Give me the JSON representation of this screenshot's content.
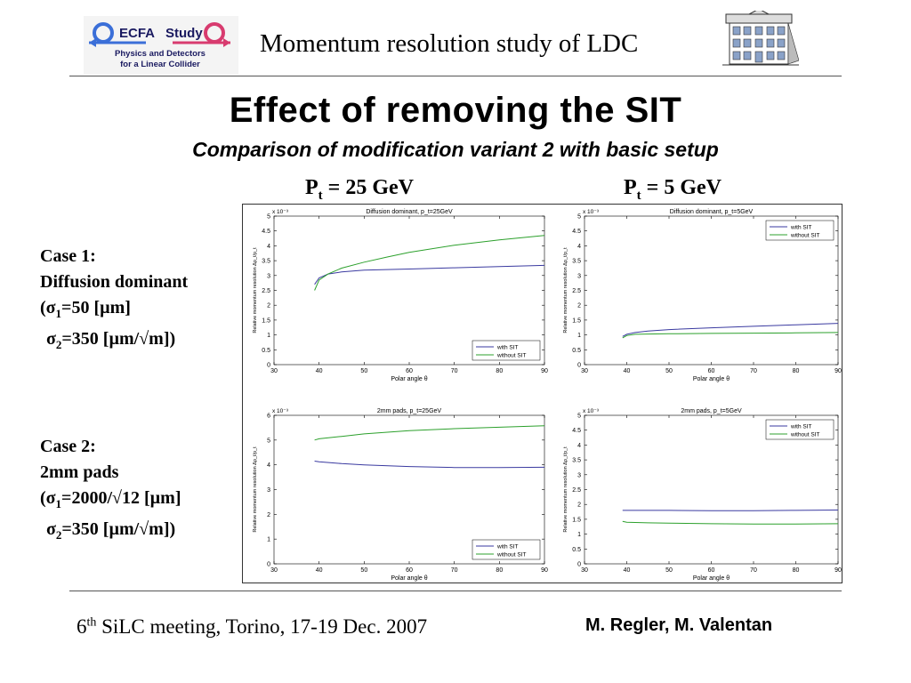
{
  "header": {
    "logo_left": {
      "name": "ECFA",
      "name2": "Study",
      "line1": "Physics and Detectors",
      "line2": "for a Linear Collider"
    },
    "title": "Momentum resolution study of LDC"
  },
  "main_title": "Effect of removing the SIT",
  "subtitle": "Comparison of modification variant 2 with basic setup",
  "columns": [
    {
      "p": "P",
      "sub": "t",
      "rest": " = 25 GeV"
    },
    {
      "p": "P",
      "sub": "t",
      "rest": " = 5 GeV"
    }
  ],
  "cases": [
    {
      "line1": "Case 1:",
      "line2": "Diffusion dominant",
      "line3_a": "(σ",
      "line3_sub": "1",
      "line3_b": "=50 [µm]",
      "line4_a": "σ",
      "line4_sub": "2",
      "line4_b": "=350 [µm/√m])"
    },
    {
      "line1": "Case 2:",
      "line2": "2mm pads",
      "line3_a": "(σ",
      "line3_sub": "1",
      "line3_b": "=2000/√12 [µm]",
      "line4_a": "σ",
      "line4_sub": "2",
      "line4_b": "=350 [µm/√m])"
    }
  ],
  "chart_data": [
    {
      "type": "line",
      "title": "Diffusion dominant, p_t=25GeV",
      "xlabel": "Polar angle θ",
      "ylabel": "Relative momentum resolution Δp_t/p_t",
      "yexp": "x 10⁻³",
      "xlim": [
        30,
        90
      ],
      "ylim": [
        0,
        5
      ],
      "xticks": [
        30,
        40,
        50,
        60,
        70,
        80,
        90
      ],
      "yticks": [
        0,
        0.5,
        1,
        1.5,
        2,
        2.5,
        3,
        3.5,
        4,
        4.5,
        5
      ],
      "legend_pos": "bottom-right",
      "series": [
        {
          "name": "with SIT",
          "color": "#3a3aa0",
          "x": [
            39,
            40,
            42,
            45,
            50,
            60,
            70,
            80,
            90
          ],
          "y": [
            2.7,
            2.92,
            3.05,
            3.12,
            3.18,
            3.22,
            3.26,
            3.3,
            3.34
          ]
        },
        {
          "name": "without SIT",
          "color": "#2ca02c",
          "x": [
            39,
            40,
            42,
            45,
            50,
            55,
            60,
            70,
            80,
            90
          ],
          "y": [
            2.5,
            2.85,
            3.05,
            3.25,
            3.45,
            3.62,
            3.78,
            4.02,
            4.2,
            4.35
          ]
        }
      ]
    },
    {
      "type": "line",
      "title": "Diffusion dominant, p_t=5GeV",
      "xlabel": "Polar angle θ",
      "ylabel": "Relative momentum resolution Δp_t/p_t",
      "yexp": "x 10⁻³",
      "xlim": [
        30,
        90
      ],
      "ylim": [
        0,
        5
      ],
      "xticks": [
        30,
        40,
        50,
        60,
        70,
        80,
        90
      ],
      "yticks": [
        0,
        0.5,
        1,
        1.5,
        2,
        2.5,
        3,
        3.5,
        4,
        4.5,
        5
      ],
      "legend_pos": "top-right",
      "series": [
        {
          "name": "with SIT",
          "color": "#3a3aa0",
          "x": [
            39,
            40,
            42,
            45,
            50,
            60,
            70,
            80,
            90
          ],
          "y": [
            0.95,
            1.02,
            1.08,
            1.13,
            1.18,
            1.24,
            1.29,
            1.34,
            1.39
          ]
        },
        {
          "name": "without SIT",
          "color": "#2ca02c",
          "x": [
            39,
            40,
            42,
            45,
            50,
            60,
            70,
            80,
            90
          ],
          "y": [
            0.9,
            0.98,
            1.02,
            1.03,
            1.04,
            1.05,
            1.06,
            1.07,
            1.08
          ]
        }
      ]
    },
    {
      "type": "line",
      "title": "2mm pads, p_t=25GeV",
      "xlabel": "Polar angle θ",
      "ylabel": "Relative momentum resolution Δp_t/p_t",
      "yexp": "x 10⁻³",
      "xlim": [
        30,
        90
      ],
      "ylim": [
        0,
        6
      ],
      "xticks": [
        30,
        40,
        50,
        60,
        70,
        80,
        90
      ],
      "yticks": [
        0,
        1,
        2,
        3,
        4,
        5,
        6
      ],
      "legend_pos": "bottom-right",
      "series": [
        {
          "name": "with SIT",
          "color": "#3a3aa0",
          "x": [
            39,
            40,
            45,
            50,
            60,
            70,
            80,
            90
          ],
          "y": [
            4.15,
            4.12,
            4.05,
            4.0,
            3.93,
            3.89,
            3.89,
            3.9
          ]
        },
        {
          "name": "without SIT",
          "color": "#2ca02c",
          "x": [
            39,
            40,
            45,
            50,
            60,
            70,
            80,
            90
          ],
          "y": [
            5.0,
            5.05,
            5.15,
            5.25,
            5.38,
            5.46,
            5.52,
            5.58
          ]
        }
      ]
    },
    {
      "type": "line",
      "title": "2mm pads, p_t=5GeV",
      "xlabel": "Polar angle θ",
      "ylabel": "Relative momentum resolution Δp_t/p_t",
      "yexp": "x 10⁻³",
      "xlim": [
        30,
        90
      ],
      "ylim": [
        0,
        5
      ],
      "xticks": [
        30,
        40,
        50,
        60,
        70,
        80,
        90
      ],
      "yticks": [
        0,
        0.5,
        1,
        1.5,
        2,
        2.5,
        3,
        3.5,
        4,
        4.5,
        5
      ],
      "legend_pos": "top-right",
      "series": [
        {
          "name": "with SIT",
          "color": "#3a3aa0",
          "x": [
            39,
            50,
            60,
            70,
            80,
            90
          ],
          "y": [
            1.8,
            1.8,
            1.79,
            1.79,
            1.8,
            1.81
          ]
        },
        {
          "name": "without SIT",
          "color": "#2ca02c",
          "x": [
            39,
            40,
            45,
            50,
            60,
            70,
            80,
            90
          ],
          "y": [
            1.43,
            1.4,
            1.38,
            1.37,
            1.35,
            1.34,
            1.34,
            1.35
          ]
        }
      ]
    }
  ],
  "footer": {
    "meeting_num": "6",
    "meeting_sup": "th",
    "meeting_rest": " SiLC meeting, Torino, 17-19 Dec. 2007",
    "author1": "M. Regler",
    "sep": ", ",
    "author2": "M. Valentan"
  }
}
